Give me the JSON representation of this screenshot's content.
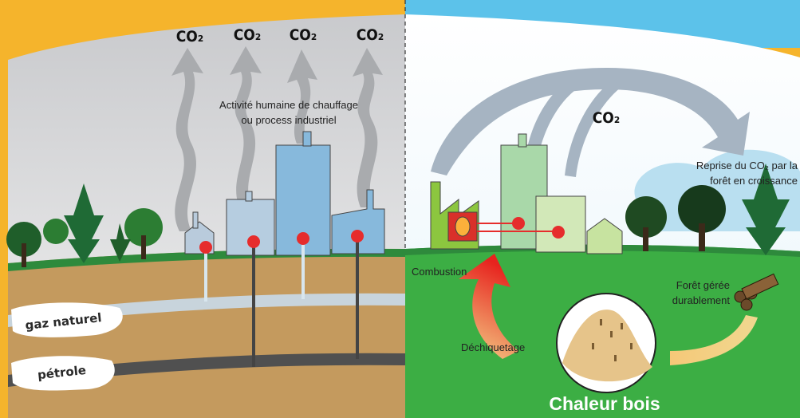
{
  "left": {
    "co2_labels": [
      "CO₂",
      "CO₂",
      "CO₂",
      "CO₂"
    ],
    "caption": [
      "Activité humaine de chauffage",
      "ou process industriel"
    ],
    "layers": [
      "gaz naturel",
      "pétrole"
    ]
  },
  "right": {
    "co2_label": "CO₂",
    "caption": [
      "Reprise du CO₂ par la",
      "forêt en croissance"
    ],
    "combustion": "Combustion",
    "forest": [
      "Forêt gérée",
      "durablement"
    ],
    "chipping": "Déchiquetage",
    "title": "Chaleur bois"
  }
}
